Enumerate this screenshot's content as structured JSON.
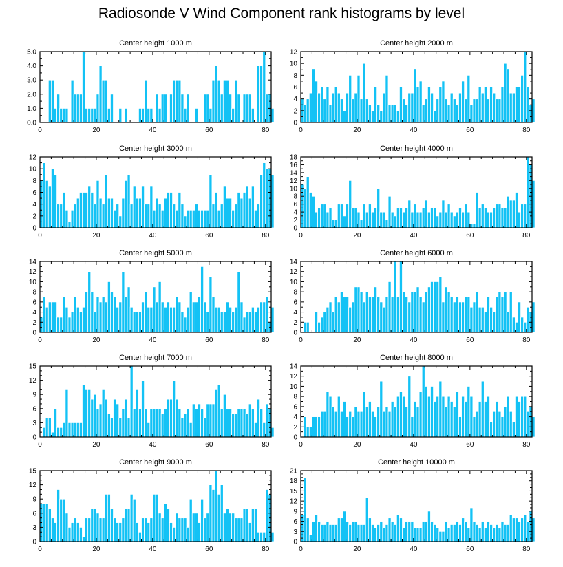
{
  "page_title": "Radiosonde V Wind Component rank histograms by level",
  "colors": {
    "bar": "#13c2f5",
    "bar_edge": "#ffffff",
    "axis": "#000000"
  },
  "chart_data": [
    {
      "type": "bar",
      "title": "Center height 1000 m",
      "xlim": [
        0,
        82
      ],
      "ylim": [
        0,
        5
      ],
      "xticks": [
        0,
        20,
        40,
        60,
        80
      ],
      "yticks": [
        0,
        1,
        2,
        3,
        4,
        5
      ],
      "ytick_labels": [
        "0.0",
        "1.0",
        "2.0",
        "3.0",
        "4.0",
        "5.0"
      ],
      "values": [
        0,
        0,
        0,
        3,
        3,
        1,
        2,
        1,
        1,
        1,
        0,
        3,
        2,
        2,
        2,
        5,
        1,
        1,
        1,
        1,
        2,
        4,
        3,
        3,
        1,
        2,
        0,
        0,
        1,
        0,
        1,
        0,
        0,
        0,
        0,
        1,
        1,
        3,
        1,
        1,
        0,
        2,
        1,
        2,
        2,
        0,
        2,
        3,
        3,
        3,
        2,
        1,
        2,
        0,
        0,
        1,
        0,
        0,
        2,
        2,
        1,
        3,
        4,
        3,
        2,
        3,
        3,
        2,
        1,
        3,
        2,
        0,
        2,
        2,
        2,
        1,
        0,
        4,
        4,
        5,
        2,
        2,
        1
      ]
    },
    {
      "type": "bar",
      "title": "Center height 2000 m",
      "xlim": [
        0,
        82
      ],
      "ylim": [
        0,
        12
      ],
      "xticks": [
        0,
        20,
        40,
        60,
        80
      ],
      "yticks": [
        0,
        2,
        4,
        6,
        8,
        10,
        12
      ],
      "ytick_labels": [
        "0",
        "2",
        "4",
        "6",
        "8",
        "10",
        "12"
      ],
      "values": [
        4,
        3,
        4,
        5,
        9,
        7,
        5,
        6,
        4,
        6,
        3,
        5,
        6,
        5,
        4,
        2,
        5,
        8,
        4,
        5,
        8,
        4,
        10,
        4,
        3,
        2,
        6,
        3,
        2,
        5,
        8,
        3,
        3,
        3,
        2,
        6,
        4,
        3,
        5,
        5,
        9,
        6,
        7,
        3,
        4,
        6,
        5,
        2,
        4,
        6,
        7,
        4,
        3,
        5,
        4,
        3,
        5,
        7,
        4,
        8,
        3,
        4,
        4,
        6,
        5,
        6,
        4,
        6,
        5,
        4,
        4,
        6,
        10,
        9,
        5,
        5,
        6,
        6,
        8,
        12,
        6,
        3,
        4
      ]
    },
    {
      "type": "bar",
      "title": "Center height 3000 m",
      "xlim": [
        0,
        82
      ],
      "ylim": [
        0,
        12
      ],
      "xticks": [
        0,
        20,
        40,
        60,
        80
      ],
      "yticks": [
        0,
        2,
        4,
        6,
        8,
        10,
        12
      ],
      "ytick_labels": [
        "0",
        "2",
        "4",
        "6",
        "8",
        "10",
        "12"
      ],
      "values": [
        8,
        11,
        8,
        7,
        10,
        9,
        4,
        4,
        6,
        3,
        1,
        3,
        4,
        5,
        6,
        6,
        6,
        7,
        6,
        4,
        8,
        5,
        4,
        9,
        5,
        5,
        3,
        4,
        2,
        5,
        8,
        9,
        4,
        7,
        5,
        5,
        7,
        4,
        4,
        7,
        3,
        5,
        4,
        3,
        5,
        6,
        6,
        4,
        3,
        6,
        4,
        2,
        3,
        3,
        3,
        4,
        3,
        3,
        3,
        3,
        9,
        4,
        6,
        3,
        4,
        7,
        5,
        5,
        3,
        4,
        6,
        5,
        6,
        7,
        5,
        7,
        3,
        4,
        9,
        11,
        10,
        10,
        9
      ]
    },
    {
      "type": "bar",
      "title": "Center height 4000 m",
      "xlim": [
        0,
        82
      ],
      "ylim": [
        0,
        18
      ],
      "xticks": [
        0,
        20,
        40,
        60,
        80
      ],
      "yticks": [
        0,
        2,
        4,
        6,
        8,
        10,
        12,
        14,
        16,
        18
      ],
      "ytick_labels": [
        "0",
        "2",
        "4",
        "6",
        "8",
        "10",
        "12",
        "14",
        "16",
        "18"
      ],
      "values": [
        11,
        10,
        13,
        9,
        8,
        4,
        5,
        6,
        6,
        4,
        5,
        2,
        2,
        6,
        6,
        3,
        6,
        12,
        5,
        5,
        4,
        2,
        6,
        4,
        6,
        4,
        5,
        10,
        4,
        4,
        2,
        8,
        4,
        3,
        5,
        5,
        4,
        5,
        7,
        4,
        6,
        4,
        4,
        5,
        7,
        4,
        5,
        5,
        3,
        4,
        7,
        4,
        6,
        4,
        3,
        4,
        5,
        4,
        6,
        4,
        1,
        1,
        9,
        5,
        6,
        5,
        4,
        4,
        5,
        6,
        6,
        5,
        5,
        8,
        7,
        7,
        9,
        4,
        6,
        6,
        18,
        16,
        12
      ]
    },
    {
      "type": "bar",
      "title": "Center height 5000 m",
      "xlim": [
        0,
        82
      ],
      "ylim": [
        0,
        14
      ],
      "xticks": [
        0,
        20,
        40,
        60,
        80
      ],
      "yticks": [
        0,
        2,
        4,
        6,
        8,
        10,
        12,
        14
      ],
      "ytick_labels": [
        "0",
        "2",
        "4",
        "6",
        "8",
        "10",
        "12",
        "14"
      ],
      "values": [
        3,
        7,
        5,
        6,
        6,
        6,
        3,
        3,
        7,
        5,
        3,
        4,
        7,
        5,
        4,
        5,
        8,
        12,
        8,
        4,
        7,
        6,
        7,
        6,
        10,
        8,
        7,
        5,
        6,
        12,
        7,
        9,
        5,
        4,
        4,
        4,
        6,
        8,
        5,
        5,
        9,
        6,
        10,
        6,
        5,
        6,
        5,
        5,
        7,
        6,
        4,
        3,
        5,
        8,
        6,
        6,
        7,
        13,
        6,
        4,
        11,
        7,
        5,
        5,
        4,
        4,
        6,
        5,
        4,
        5,
        12,
        6,
        3,
        4,
        4,
        5,
        4,
        5,
        6,
        6,
        7,
        2,
        5
      ]
    },
    {
      "type": "bar",
      "title": "Center height 6000 m",
      "xlim": [
        0,
        82
      ],
      "ylim": [
        0,
        14
      ],
      "xticks": [
        0,
        20,
        40,
        60,
        80
      ],
      "yticks": [
        0,
        2,
        4,
        6,
        8,
        10,
        12,
        14
      ],
      "ytick_labels": [
        "0",
        "2",
        "4",
        "6",
        "8",
        "10",
        "12",
        "14"
      ],
      "values": [
        0,
        2,
        2,
        0,
        0,
        4,
        2,
        3,
        4,
        5,
        6,
        4,
        7,
        6,
        8,
        7,
        7,
        5,
        6,
        9,
        9,
        8,
        6,
        8,
        7,
        7,
        9,
        7,
        6,
        5,
        7,
        10,
        7,
        14,
        7,
        14,
        8,
        7,
        6,
        8,
        8,
        9,
        7,
        6,
        8,
        9,
        10,
        10,
        10,
        11,
        6,
        9,
        8,
        7,
        6,
        7,
        6,
        6,
        7,
        7,
        5,
        6,
        8,
        5,
        5,
        4,
        7,
        5,
        4,
        7,
        8,
        7,
        8,
        4,
        8,
        3,
        2,
        6,
        3,
        2,
        5,
        4,
        6
      ]
    },
    {
      "type": "bar",
      "title": "Center height 7000 m",
      "xlim": [
        0,
        82
      ],
      "ylim": [
        0,
        15
      ],
      "xticks": [
        0,
        20,
        40,
        60,
        80
      ],
      "yticks": [
        0,
        3,
        6,
        9,
        12,
        15
      ],
      "ytick_labels": [
        "0",
        "3",
        "6",
        "9",
        "12",
        "15"
      ],
      "values": [
        0,
        2,
        4,
        4,
        1,
        6,
        2,
        2,
        3,
        10,
        3,
        3,
        3,
        3,
        3,
        11,
        10,
        10,
        8,
        9,
        6,
        7,
        10,
        8,
        5,
        4,
        8,
        7,
        4,
        6,
        8,
        4,
        15,
        6,
        10,
        6,
        12,
        6,
        3,
        6,
        6,
        6,
        6,
        5,
        6,
        8,
        8,
        12,
        8,
        6,
        4,
        5,
        6,
        3,
        7,
        6,
        7,
        6,
        4,
        7,
        7,
        7,
        10,
        11,
        6,
        9,
        6,
        6,
        5,
        5,
        6,
        6,
        6,
        5,
        7,
        6,
        3,
        8,
        6,
        3,
        7,
        6,
        2
      ]
    },
    {
      "type": "bar",
      "title": "Center height 8000 m",
      "xlim": [
        0,
        82
      ],
      "ylim": [
        0,
        14
      ],
      "xticks": [
        0,
        20,
        40,
        60,
        80
      ],
      "yticks": [
        0,
        2,
        4,
        6,
        8,
        10,
        12,
        14
      ],
      "ytick_labels": [
        "0",
        "2",
        "4",
        "6",
        "8",
        "10",
        "12",
        "14"
      ],
      "values": [
        0,
        4,
        2,
        2,
        4,
        4,
        4,
        5,
        5,
        9,
        8,
        6,
        5,
        8,
        5,
        7,
        4,
        5,
        4,
        6,
        5,
        5,
        9,
        6,
        7,
        5,
        4,
        6,
        11,
        5,
        6,
        5,
        7,
        6,
        8,
        9,
        8,
        6,
        12,
        4,
        7,
        6,
        9,
        14,
        10,
        8,
        10,
        7,
        8,
        11,
        8,
        6,
        8,
        7,
        6,
        9,
        4,
        8,
        7,
        10,
        8,
        4,
        5,
        7,
        11,
        7,
        8,
        3,
        5,
        7,
        5,
        4,
        6,
        8,
        5,
        3,
        8,
        7,
        8,
        8,
        5,
        6,
        4
      ]
    },
    {
      "type": "bar",
      "title": "Center height 9000 m",
      "xlim": [
        0,
        82
      ],
      "ylim": [
        0,
        15
      ],
      "xticks": [
        0,
        20,
        40,
        60,
        80
      ],
      "yticks": [
        0,
        3,
        6,
        9,
        12,
        15
      ],
      "ytick_labels": [
        "0",
        "3",
        "6",
        "9",
        "12",
        "15"
      ],
      "values": [
        8,
        8,
        8,
        7,
        5,
        4,
        11,
        9,
        9,
        6,
        3,
        4,
        5,
        4,
        3,
        1,
        5,
        5,
        7,
        7,
        6,
        5,
        5,
        10,
        10,
        7,
        5,
        4,
        4,
        5,
        7,
        7,
        10,
        9,
        4,
        2,
        5,
        5,
        4,
        5,
        10,
        10,
        6,
        5,
        8,
        7,
        4,
        3,
        6,
        5,
        5,
        5,
        3,
        9,
        6,
        6,
        4,
        9,
        5,
        6,
        12,
        11,
        15,
        10,
        12,
        6,
        7,
        6,
        6,
        5,
        5,
        5,
        7,
        7,
        4,
        7,
        7,
        2,
        2,
        2,
        11,
        10,
        2
      ]
    },
    {
      "type": "bar",
      "title": "Center height 10000 m",
      "xlim": [
        0,
        82
      ],
      "ylim": [
        0,
        21
      ],
      "xticks": [
        0,
        20,
        40,
        60,
        80
      ],
      "yticks": [
        0,
        3,
        6,
        9,
        12,
        15,
        18,
        21
      ],
      "ytick_labels": [
        "0",
        "3",
        "6",
        "9",
        "12",
        "15",
        "18",
        "21"
      ],
      "values": [
        8,
        19,
        7,
        2,
        6,
        8,
        6,
        5,
        5,
        6,
        5,
        5,
        5,
        7,
        7,
        9,
        6,
        5,
        6,
        6,
        5,
        5,
        5,
        13,
        7,
        5,
        4,
        5,
        6,
        4,
        5,
        7,
        6,
        5,
        8,
        7,
        4,
        6,
        6,
        6,
        4,
        4,
        4,
        6,
        6,
        9,
        6,
        5,
        4,
        3,
        3,
        6,
        4,
        5,
        5,
        6,
        5,
        7,
        6,
        4,
        10,
        6,
        5,
        4,
        6,
        4,
        6,
        5,
        4,
        5,
        4,
        6,
        5,
        5,
        8,
        7,
        7,
        6,
        7,
        8,
        6,
        9,
        7
      ]
    }
  ]
}
